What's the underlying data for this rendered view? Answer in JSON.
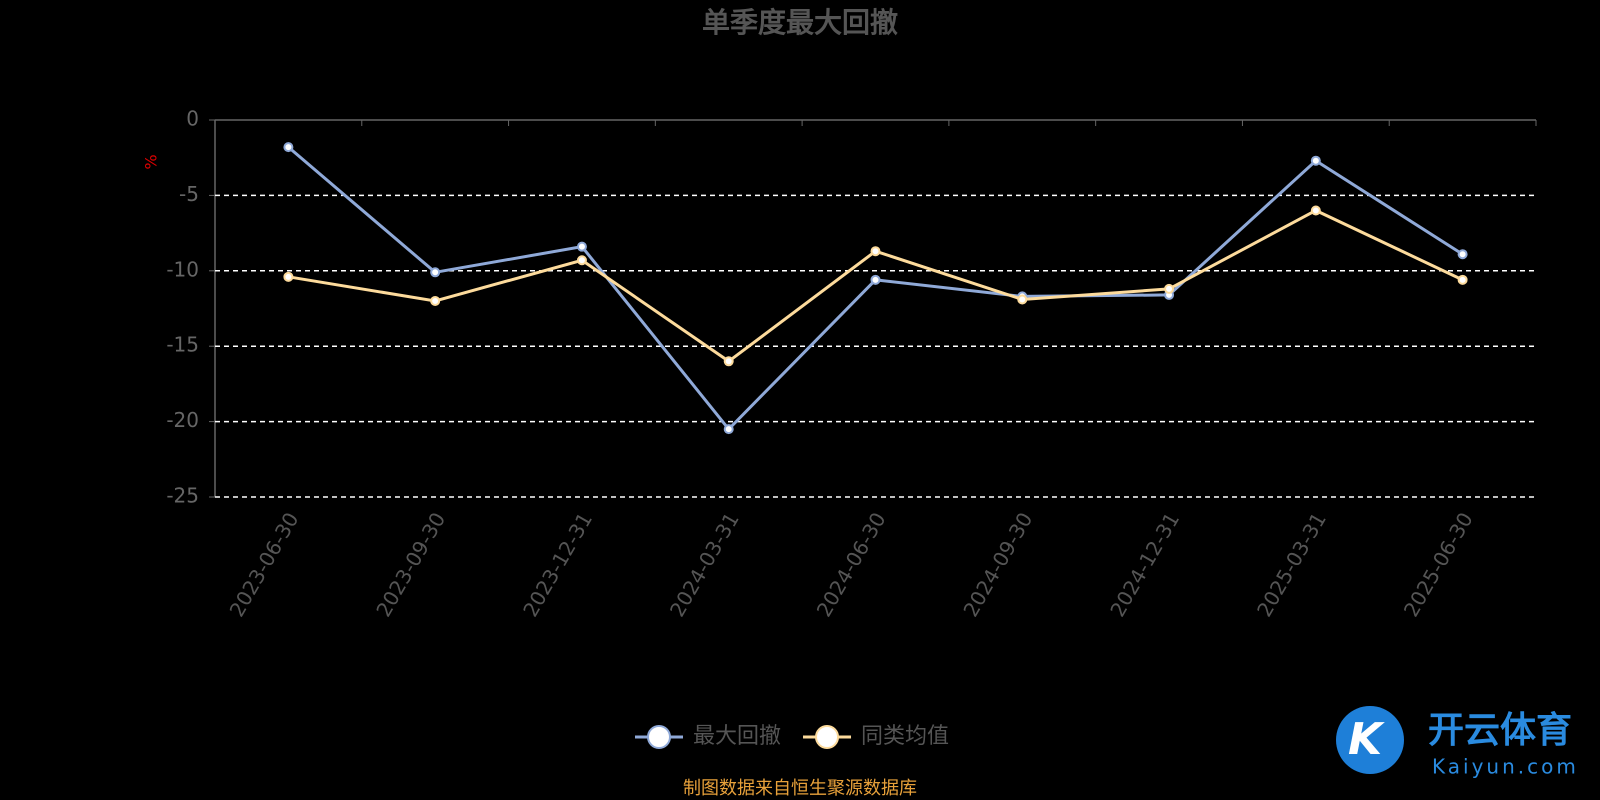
{
  "chart_data": {
    "type": "line",
    "title": "单季度最大回撤",
    "y_label": "%",
    "categories": [
      "2023-06-30",
      "2023-09-30",
      "2023-12-31",
      "2024-03-31",
      "2024-06-30",
      "2024-09-30",
      "2024-12-31",
      "2025-03-31",
      "2025-06-30"
    ],
    "series": [
      {
        "name": "最大回撤",
        "color": "#8fa9d8",
        "values": [
          -1.8,
          -10.1,
          -8.4,
          -20.5,
          -10.6,
          -11.7,
          -11.6,
          -2.7,
          -8.9
        ]
      },
      {
        "name": "同类均值",
        "color": "#fddb9c",
        "values": [
          -10.4,
          -12.0,
          -9.3,
          -16.0,
          -8.7,
          -11.9,
          -11.2,
          -6.0,
          -10.6
        ]
      }
    ],
    "ylim": [
      -25,
      0
    ],
    "yticks": [
      0,
      -5,
      -10,
      -15,
      -20,
      -25
    ],
    "grid": true,
    "source": "制图数据来自恒生聚源数据库",
    "watermark": {
      "brand": "开云体育",
      "site": "Kaiyun.com"
    }
  }
}
